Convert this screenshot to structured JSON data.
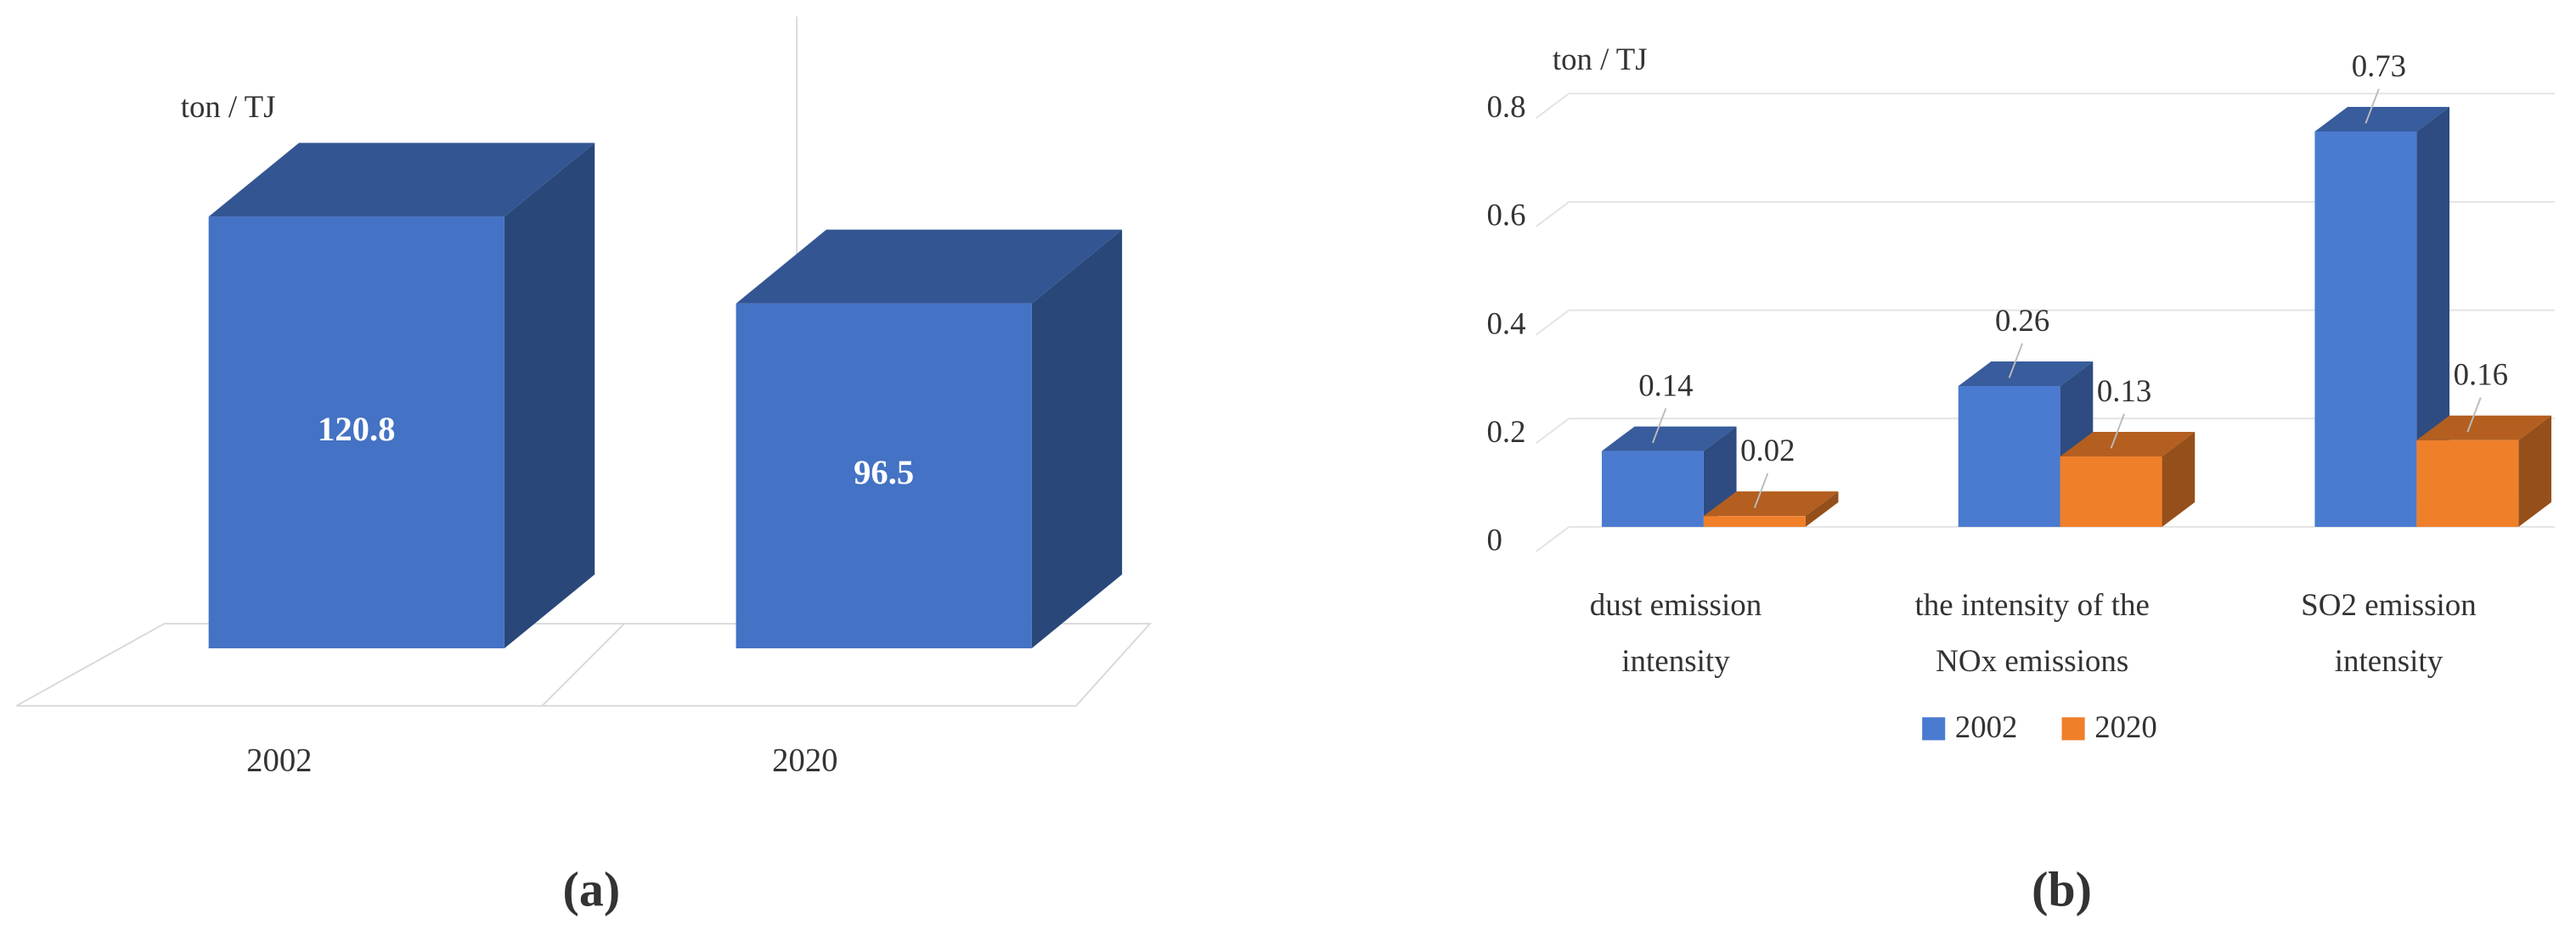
{
  "chart_data": [
    {
      "type": "bar",
      "panel_label": "(a)",
      "y_label": "ton / TJ",
      "categories": [
        "2002",
        "2020"
      ],
      "values": [
        120.8,
        96.5
      ],
      "color": "#4472c4"
    },
    {
      "type": "bar",
      "panel_label": "(b)",
      "y_label": "ton / TJ",
      "categories": [
        "dust emission\nintensity",
        "the intensity of the\nNOx emissions",
        "SO2 emission\nintensity"
      ],
      "series": [
        {
          "name": "2002",
          "color": "#4a7bd0",
          "values": [
            0.14,
            0.26,
            0.73
          ]
        },
        {
          "name": "2020",
          "color": "#f07f2a",
          "values": [
            0.02,
            0.13,
            0.16
          ]
        }
      ],
      "ylim": [
        0,
        0.8
      ],
      "yticks": [
        0,
        0.2,
        0.4,
        0.6,
        0.8
      ],
      "grid": true,
      "legend": "bottom"
    }
  ]
}
